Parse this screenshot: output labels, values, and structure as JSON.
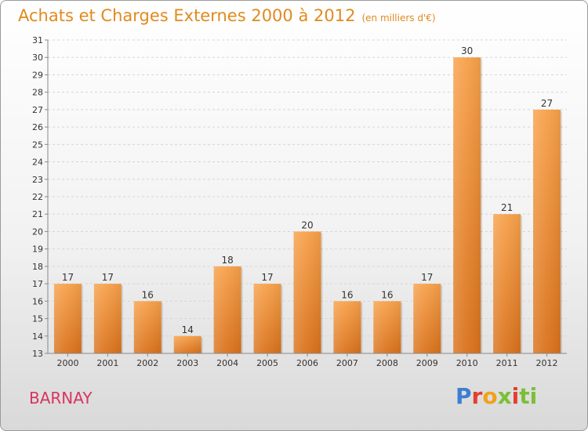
{
  "chart_data": {
    "type": "bar",
    "title": "Achats et Charges Externes 2000 à 2012",
    "subtitle": "(en milliers d'€)",
    "categories": [
      "2000",
      "2001",
      "2002",
      "2003",
      "2004",
      "2005",
      "2006",
      "2007",
      "2008",
      "2009",
      "2010",
      "2011",
      "2012"
    ],
    "values": [
      17,
      17,
      16,
      14,
      18,
      17,
      20,
      16,
      16,
      17,
      30,
      21,
      27
    ],
    "ylim": [
      13,
      31
    ],
    "yticks": [
      13,
      14,
      15,
      16,
      17,
      18,
      19,
      20,
      21,
      22,
      23,
      24,
      25,
      26,
      27,
      28,
      29,
      30,
      31
    ],
    "grid": true,
    "legend": "none"
  },
  "location": "BARNAY",
  "logo": {
    "letters": [
      "P",
      "r",
      "o",
      "x",
      "i",
      "ti"
    ]
  },
  "colors": {
    "bar_top": "#f7a14a",
    "bar_bottom": "#d9721c",
    "title": "#e08a1e",
    "location": "#d8345f"
  }
}
